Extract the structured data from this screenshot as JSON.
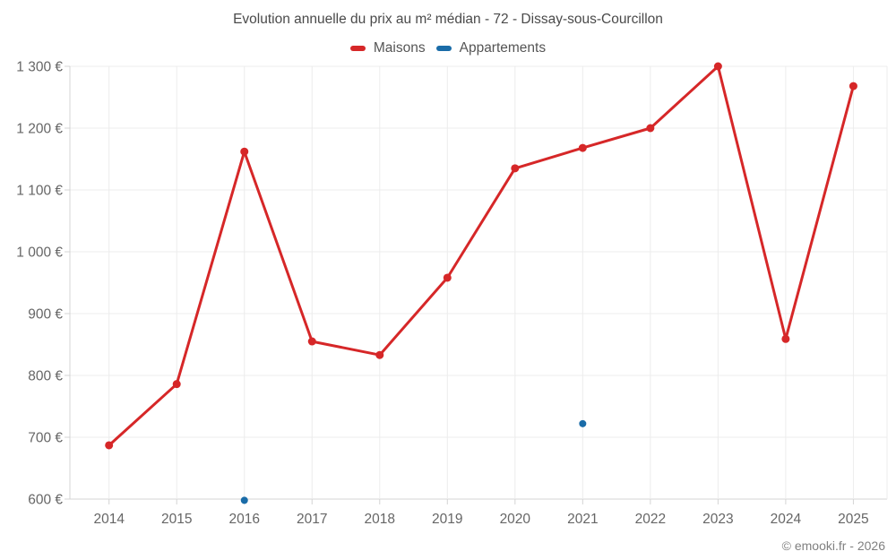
{
  "title": "Evolution annuelle du prix au m² médian - 72 - Dissay-sous-Courcillon",
  "footer": "© emooki.fr - 2026",
  "legend": {
    "items": [
      {
        "label": "Maisons",
        "color": "#d62728"
      },
      {
        "label": "Appartements",
        "color": "#1a6ca8"
      }
    ]
  },
  "chart_data": {
    "type": "line",
    "title": "Evolution annuelle du prix au m² médian - 72 - Dissay-sous-Courcillon",
    "xlabel": "",
    "ylabel": "",
    "categories": [
      "2014",
      "2015",
      "2016",
      "2017",
      "2018",
      "2019",
      "2020",
      "2021",
      "2022",
      "2023",
      "2024",
      "2025"
    ],
    "series": [
      {
        "name": "Maisons",
        "color": "#d62728",
        "draw_line": true,
        "marker_radius": 4.5,
        "values": [
          687,
          786,
          1162,
          855,
          833,
          958,
          1135,
          1168,
          1200,
          1300,
          859,
          1268
        ]
      },
      {
        "name": "Appartements",
        "color": "#1a6ca8",
        "draw_line": true,
        "marker_radius": 4,
        "values": [
          null,
          null,
          598,
          null,
          null,
          null,
          null,
          722,
          null,
          null,
          null,
          null
        ]
      }
    ],
    "ylim": [
      600,
      1300
    ],
    "ytick_step": 100,
    "ytick_labels": [
      "600 €",
      "700 €",
      "800 €",
      "900 €",
      "1 000 €",
      "1 100 €",
      "1 200 €",
      "1 300 €"
    ],
    "grid": true,
    "legend_position": "top"
  },
  "colors": {
    "maisons": "#d62728",
    "appartements": "#1a6ca8",
    "grid": "#ececec",
    "axis": "#d4d4d4",
    "tick_text": "#666666",
    "title_text": "#4a4a4a",
    "footer_text": "#808080"
  }
}
